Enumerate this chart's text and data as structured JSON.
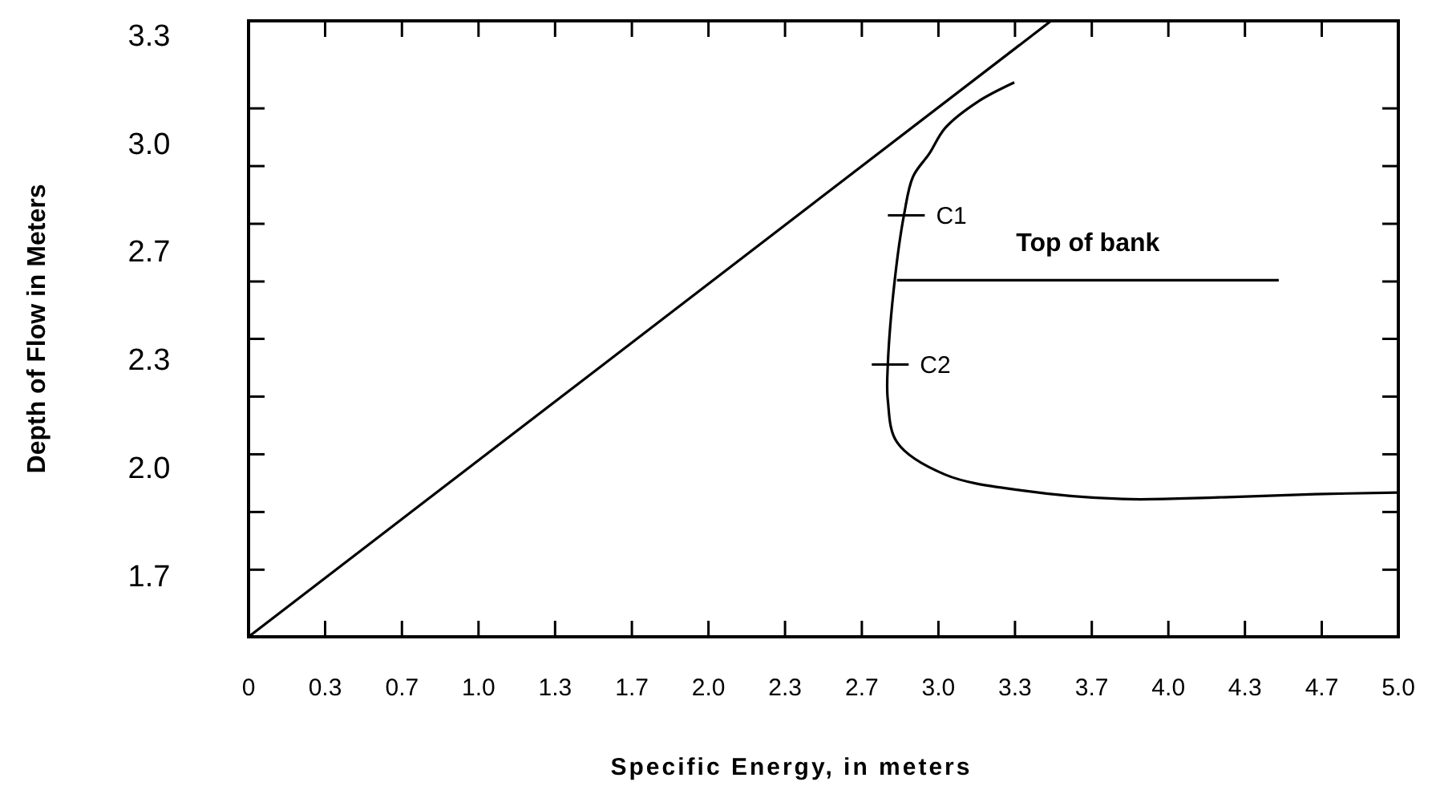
{
  "chart_data": {
    "type": "line",
    "xlabel": "Specific Energy, in meters",
    "ylabel": "Depth of Flow in Meters",
    "xlim": [
      0,
      5
    ],
    "ylim": [
      1.48,
      3.38
    ],
    "xticks": [
      0,
      {
        "value": 0.333,
        "label": "0.3"
      },
      {
        "value": 0.667,
        "label": "0.7"
      },
      {
        "value": 1,
        "label": "1.0"
      },
      {
        "value": 1.333,
        "label": "1.3"
      },
      {
        "value": 1.667,
        "label": "1.7"
      },
      {
        "value": 2,
        "label": "2.0"
      },
      {
        "value": 2.333,
        "label": "2.3"
      },
      {
        "value": 2.667,
        "label": "2.7"
      },
      {
        "value": 3,
        "label": "3.0"
      },
      {
        "value": 3.333,
        "label": "3.3"
      },
      {
        "value": 3.667,
        "label": "3.7"
      },
      {
        "value": 4,
        "label": "4.0"
      },
      {
        "value": 4.333,
        "label": "4.3"
      },
      {
        "value": 4.667,
        "label": "4.7"
      },
      {
        "value": 5,
        "label": "5.0"
      }
    ],
    "yticks": [
      {
        "value": 1.667,
        "label": "1.7"
      },
      {
        "value": 2,
        "label": "2.0"
      },
      {
        "value": 2.333,
        "label": "2.3"
      },
      {
        "value": 2.667,
        "label": "2.7"
      },
      {
        "value": 3,
        "label": "3.0"
      },
      {
        "value": 3.333,
        "label": "3.3"
      },
      {
        "value": 1.687,
        "label": null
      },
      {
        "value": 1.865,
        "label": null
      },
      {
        "value": 2.043,
        "label": null
      },
      {
        "value": 2.221,
        "label": null
      },
      {
        "value": 2.399,
        "label": null
      },
      {
        "value": 2.576,
        "label": null
      },
      {
        "value": 2.754,
        "label": null
      },
      {
        "value": 2.932,
        "label": null
      },
      {
        "value": 3.11,
        "label": null
      }
    ],
    "grid": false,
    "marker": "none",
    "line_style": "solid",
    "series": [
      {
        "color": "#000000",
        "x": [
          0,
          3.49
        ],
        "values": [
          1.48,
          3.38
        ]
      },
      {
        "color": "#000000",
        "x": [
          3.33,
          3.17,
          3.03,
          2.96,
          2.89,
          2.85,
          2.81,
          2.78,
          2.78,
          2.82,
          3.03,
          3.38,
          3.8,
          4.22,
          4.64,
          5
        ],
        "values": [
          3.19,
          3.13,
          3.05,
          2.97,
          2.9,
          2.78,
          2.58,
          2.32,
          2.21,
          2.08,
          1.98,
          1.93,
          1.905,
          1.91,
          1.92,
          1.925
        ]
      },
      {
        "color": "#000000",
        "x": [
          2.82,
          4.48
        ],
        "values": [
          2.58,
          2.58
        ]
      }
    ],
    "annotations": [
      {
        "text": "C1",
        "x": 2.85,
        "y": 2.78
      },
      {
        "text": "C2",
        "x": 2.78,
        "y": 2.32
      },
      {
        "text": "Top of bank",
        "x": 3.65,
        "y": 2.58
      }
    ]
  }
}
